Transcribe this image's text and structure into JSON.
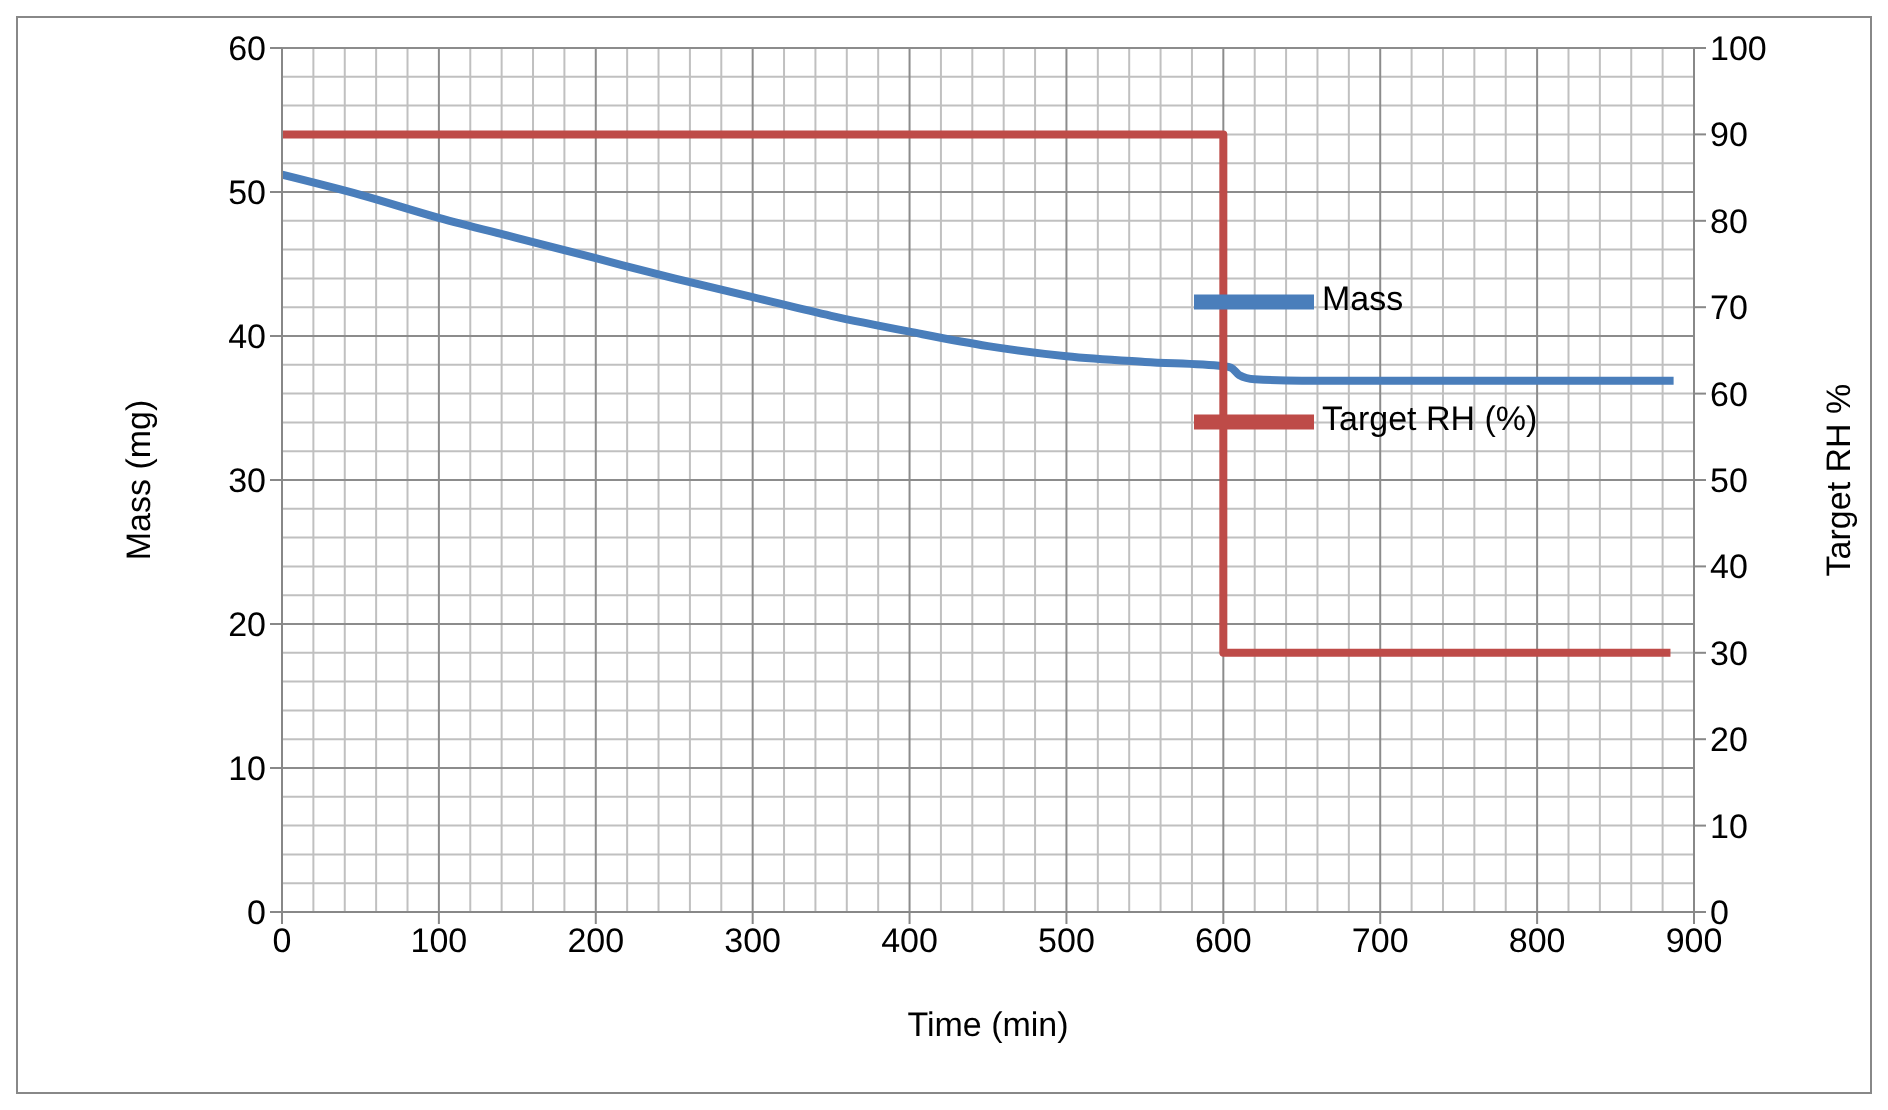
{
  "chart_data": {
    "type": "line",
    "xlabel": "Time (min)",
    "ylabel": "Mass (mg)",
    "y2label": "Target RH %",
    "xlim": [
      0,
      900
    ],
    "xticks": [
      0,
      100,
      200,
      300,
      400,
      500,
      600,
      700,
      800,
      900
    ],
    "ylim": [
      0,
      60
    ],
    "yticks": [
      0,
      10,
      20,
      30,
      40,
      50,
      60
    ],
    "y2lim": [
      0,
      100
    ],
    "y2ticks": [
      0,
      10,
      20,
      30,
      40,
      50,
      60,
      70,
      80,
      90,
      100
    ],
    "grid": true,
    "legend": "top right",
    "marker": "none",
    "line_style": "solid",
    "series": [
      {
        "name": "Mass",
        "color": "#4a7ebb",
        "x": [
          0,
          50,
          100,
          150,
          200,
          250,
          300,
          350,
          400,
          450,
          500,
          550,
          600,
          605,
          610,
          620,
          650,
          700,
          800,
          887
        ],
        "values": [
          51.2,
          49.8,
          48.2,
          46.8,
          45.4,
          44.0,
          42.7,
          41.4,
          40.3,
          39.3,
          38.6,
          38.2,
          37.9,
          37.8,
          37.3,
          37.0,
          36.9,
          36.9,
          36.9,
          36.9
        ]
      },
      {
        "name": "Target RH (%)",
        "type": "step",
        "axis": "y2",
        "color": "#be4b48",
        "x": [
          0,
          600,
          885
        ],
        "values": [
          90,
          30,
          30
        ]
      }
    ]
  }
}
